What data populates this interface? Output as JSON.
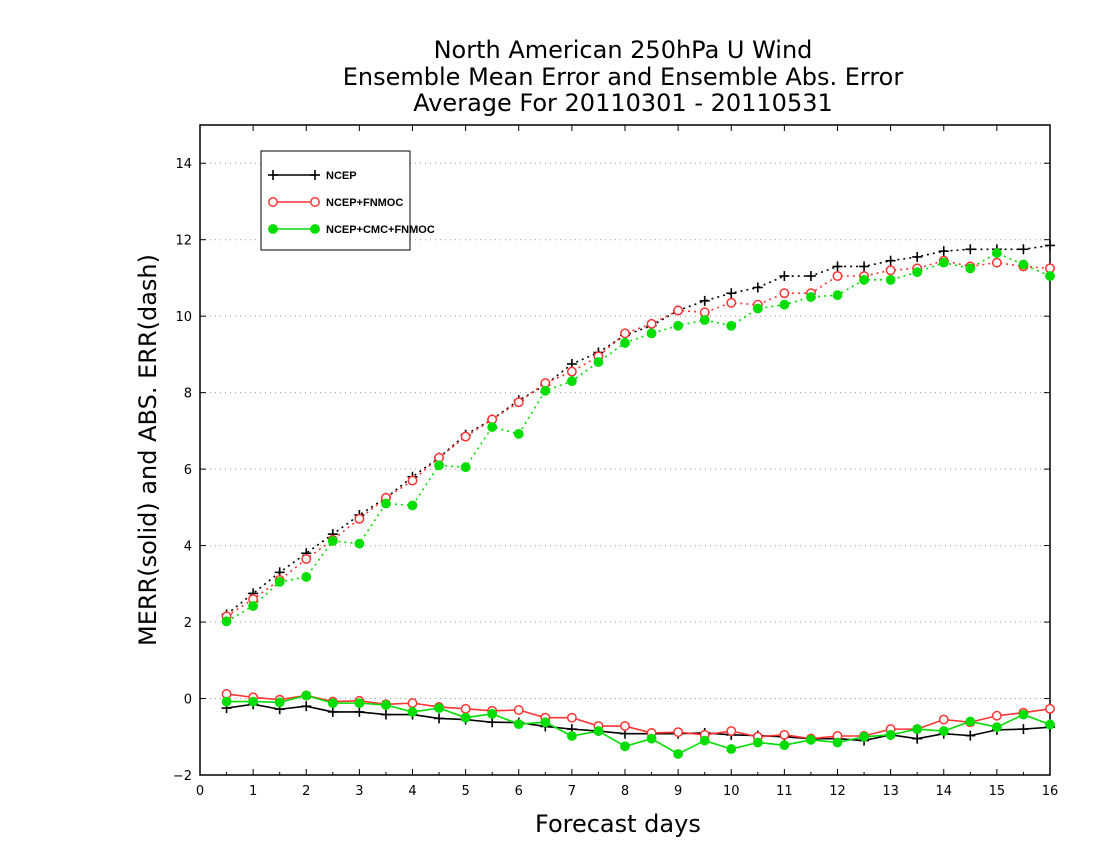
{
  "chart_data": {
    "type": "line",
    "title": [
      "North American 250hPa U Wind",
      "Ensemble Mean Error and Ensemble Abs. Error",
      "Average For 20110301 - 20110531"
    ],
    "xlabel": "Forecast days",
    "ylabel": "MERR(solid) and ABS. ERR(dash)",
    "xlim": [
      0,
      16
    ],
    "ylim": [
      -2,
      15
    ],
    "xticks": [
      0,
      1,
      2,
      3,
      4,
      5,
      6,
      7,
      8,
      9,
      10,
      11,
      12,
      13,
      14,
      15,
      16
    ],
    "yticks": [
      -2,
      0,
      2,
      4,
      6,
      8,
      10,
      12,
      14
    ],
    "grid": "horizontal-dotted",
    "legend_position": "top-left",
    "x": [
      0.5,
      1.0,
      1.5,
      2.0,
      2.5,
      3.0,
      3.5,
      4.0,
      4.5,
      5.0,
      5.5,
      6.0,
      6.5,
      7.0,
      7.5,
      8.0,
      8.5,
      9.0,
      9.5,
      10.0,
      10.5,
      11.0,
      11.5,
      12.0,
      12.5,
      13.0,
      13.5,
      14.0,
      14.5,
      15.0,
      15.5,
      16.0
    ],
    "series": [
      {
        "name": "NCEP",
        "color": "#000000",
        "marker": "plus",
        "abs_err": [
          2.2,
          2.75,
          3.3,
          3.8,
          4.3,
          4.8,
          5.25,
          5.8,
          6.3,
          6.9,
          7.3,
          7.8,
          8.2,
          8.75,
          9.05,
          9.5,
          9.75,
          10.15,
          10.4,
          10.6,
          10.75,
          11.05,
          11.05,
          11.3,
          11.3,
          11.45,
          11.55,
          11.7,
          11.75,
          11.75,
          11.75,
          11.85
        ],
        "mean_err": [
          -0.25,
          -0.15,
          -0.28,
          -0.2,
          -0.35,
          -0.35,
          -0.42,
          -0.42,
          -0.52,
          -0.55,
          -0.62,
          -0.63,
          -0.73,
          -0.8,
          -0.85,
          -0.92,
          -0.92,
          -0.92,
          -0.9,
          -0.95,
          -0.97,
          -1.0,
          -1.05,
          -1.05,
          -1.1,
          -0.95,
          -1.05,
          -0.92,
          -0.97,
          -0.82,
          -0.8,
          -0.75
        ]
      },
      {
        "name": "NCEP+FNMOC",
        "color": "#ff3333",
        "marker": "open-circle",
        "abs_err": [
          2.15,
          2.6,
          3.1,
          3.65,
          4.15,
          4.7,
          5.25,
          5.7,
          6.3,
          6.85,
          7.3,
          7.75,
          8.25,
          8.55,
          8.95,
          9.55,
          9.8,
          10.15,
          10.1,
          10.35,
          10.3,
          10.6,
          10.6,
          11.05,
          11.05,
          11.2,
          11.25,
          11.45,
          11.3,
          11.4,
          11.3,
          11.25
        ],
        "mean_err": [
          0.12,
          0.03,
          -0.03,
          0.08,
          -0.08,
          -0.06,
          -0.15,
          -0.12,
          -0.22,
          -0.27,
          -0.32,
          -0.3,
          -0.5,
          -0.5,
          -0.72,
          -0.72,
          -0.9,
          -0.88,
          -0.95,
          -0.85,
          -1.0,
          -0.95,
          -1.05,
          -0.98,
          -0.98,
          -0.8,
          -0.8,
          -0.55,
          -0.62,
          -0.45,
          -0.37,
          -0.27
        ]
      },
      {
        "name": "NCEP+CMC+FNMOC",
        "color": "#00dd00",
        "marker": "filled-circle",
        "abs_err": [
          2.02,
          2.42,
          3.05,
          3.18,
          4.12,
          4.05,
          5.1,
          5.05,
          6.1,
          6.05,
          7.1,
          6.92,
          8.05,
          8.3,
          8.8,
          9.3,
          9.55,
          9.75,
          9.9,
          9.75,
          10.2,
          10.3,
          10.5,
          10.55,
          10.95,
          10.95,
          11.15,
          11.4,
          11.25,
          11.65,
          11.35,
          11.05
        ],
        "mean_err": [
          -0.08,
          -0.08,
          -0.1,
          0.08,
          -0.12,
          -0.12,
          -0.17,
          -0.35,
          -0.25,
          -0.5,
          -0.4,
          -0.67,
          -0.62,
          -0.98,
          -0.85,
          -1.25,
          -1.05,
          -1.45,
          -1.1,
          -1.32,
          -1.15,
          -1.22,
          -1.08,
          -1.15,
          -1.0,
          -0.95,
          -0.8,
          -0.85,
          -0.6,
          -0.75,
          -0.42,
          -0.68
        ]
      }
    ]
  }
}
